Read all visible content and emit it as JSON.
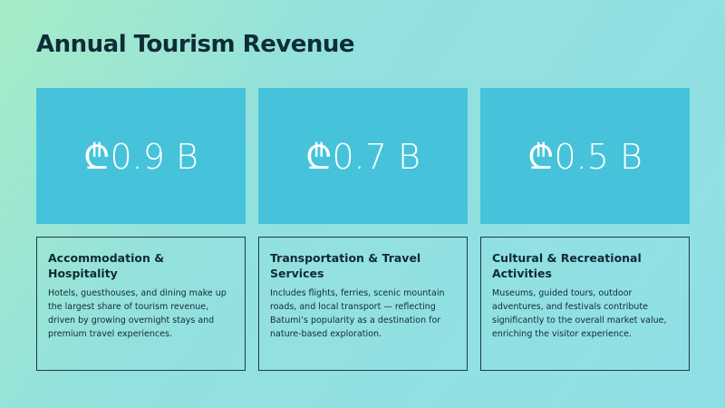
{
  "title": "Annual Tourism Revenue",
  "cards": [
    {
      "value": "₾0.9 B",
      "heading": "Accommodation & Hospitality",
      "description": "Hotels, guesthouses, and dining make up the largest share of tourism revenue, driven by growing overnight stays and premium travel experiences."
    },
    {
      "value": "₾0.7 B",
      "heading": "Transportation & Travel Services",
      "description": "Includes flights, ferries, scenic mountain roads, and local transport — reflecting Batumi’s popularity as a destination for nature-based exploration."
    },
    {
      "value": "₾0.5 B",
      "heading": "Cultural & Recreational Activities",
      "description": "Museums, guided tours, outdoor adventures, and festivals contribute significantly to the overall market value, enriching the visitor experience."
    }
  ]
}
